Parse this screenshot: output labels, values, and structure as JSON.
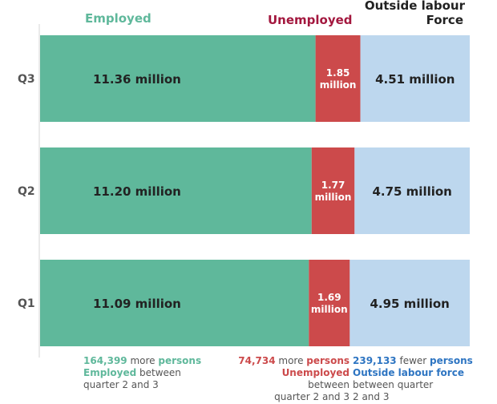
{
  "chart_data": {
    "type": "bar",
    "orientation": "horizontal",
    "stacked": "100%",
    "categories": [
      "Q3",
      "Q2",
      "Q1"
    ],
    "series": [
      {
        "name": "Employed",
        "color": "#5fb89b",
        "values": [
          11.36,
          11.2,
          11.09
        ],
        "labels": [
          "11.36 million",
          "11.20 million",
          "11.09 million"
        ]
      },
      {
        "name": "Unemployed",
        "color": "#cc4a4b",
        "values": [
          1.85,
          1.77,
          1.69
        ],
        "labels": [
          [
            "1.85",
            "million"
          ],
          [
            "1.77",
            "million"
          ],
          [
            "1.69",
            "million"
          ]
        ]
      },
      {
        "name": "Outside labour Force",
        "color": "#bdd7ee",
        "values": [
          4.51,
          4.75,
          4.95
        ],
        "labels": [
          "4.51 million",
          "4.75 million",
          "4.95 million"
        ]
      }
    ],
    "headers": {
      "employed": "Employed",
      "unemployed": "Unemployed",
      "outside_line1": "Outside labour",
      "outside_line2": "Force"
    },
    "header_colors": {
      "employed": "#5fb89b",
      "unemployed": "#a3173e",
      "outside": "#222222"
    },
    "annotations": {
      "employed": {
        "number": "164,399",
        "t1": " more ",
        "t2": "persons",
        "t3": "Employed",
        "t4": " between",
        "t5": "quarter 2 and 3"
      },
      "unemployed": {
        "number": "74,734",
        "t1": " more ",
        "t2": "persons",
        "t3": "Unemployed",
        "t4": "between",
        "t5": "quarter 2 and 3"
      },
      "outside": {
        "number": "239,133",
        "t1": " fewer ",
        "t2": "persons",
        "t3": "Outside labour force",
        "t4": "between quarter",
        "t5": "2 and 3"
      }
    },
    "annotation_colors": {
      "employed": "#5fb89b",
      "unemployed": "#cc4a4b",
      "outside": "#2e75c2"
    }
  }
}
